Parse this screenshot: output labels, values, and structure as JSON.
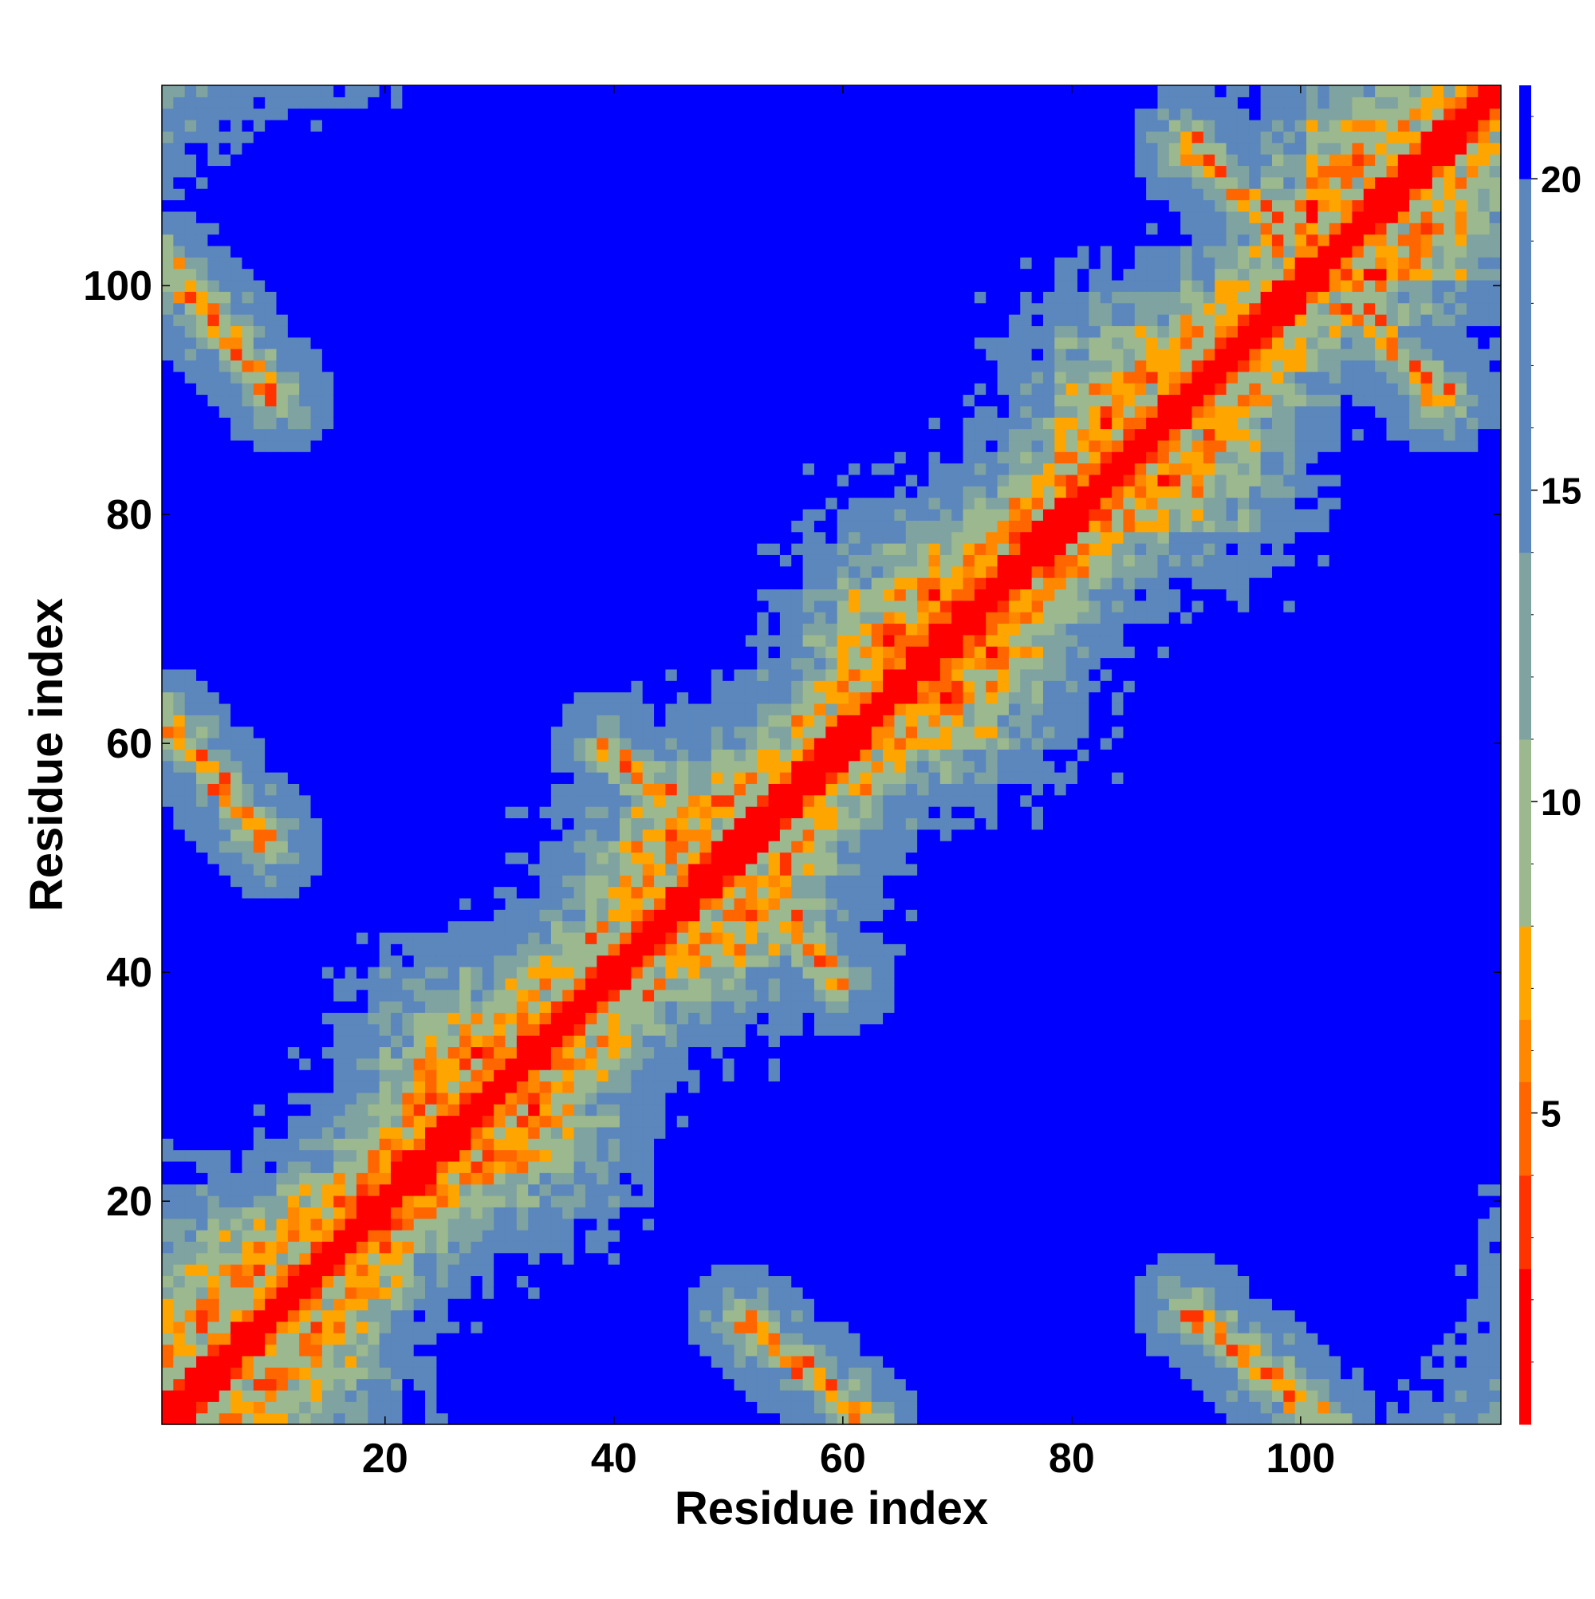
{
  "chart_data": {
    "type": "heatmap",
    "title": "",
    "xlabel": "Residue index",
    "ylabel": "Residue index",
    "n_residues": 117,
    "xlim": [
      1,
      117
    ],
    "ylim": [
      1,
      117
    ],
    "x_ticks": [
      20,
      40,
      60,
      80,
      100
    ],
    "y_ticks": [
      20,
      40,
      60,
      80,
      100
    ],
    "x_tick_labels": [
      "20",
      "40",
      "60",
      "80",
      "100"
    ],
    "y_tick_labels": [
      "20",
      "40",
      "60",
      "80",
      "100"
    ],
    "colorbar": {
      "range": [
        0,
        21.5
      ],
      "ticks": [
        5,
        10,
        15,
        20
      ],
      "tick_labels": [
        "5",
        "10",
        "15",
        "20"
      ],
      "levels": [
        {
          "max": 2.5,
          "color": "#ff0000"
        },
        {
          "max": 4.0,
          "color": "#ff3300"
        },
        {
          "max": 5.5,
          "color": "#ff6600"
        },
        {
          "max": 6.5,
          "color": "#ff8800"
        },
        {
          "max": 8.0,
          "color": "#ffa500"
        },
        {
          "max": 11.0,
          "color": "#9cb88f"
        },
        {
          "max": 14.0,
          "color": "#7fa3a0"
        },
        {
          "max": 20.0,
          "color": "#5b87bd"
        },
        {
          "max": 21.5,
          "color": "#0000ff"
        }
      ]
    },
    "grid": false,
    "legend": "colorbar-right",
    "contact_features": {
      "helix_diagonal_segments": [
        [
          14,
          36
        ],
        [
          60,
          88
        ]
      ],
      "antiparallel_bands": [
        {
          "from": [
            1,
            102
          ],
          "to": [
            11,
            90
          ]
        },
        {
          "from": [
            1,
            62
          ],
          "to": [
            10,
            51
          ]
        },
        {
          "from": [
            40,
            59
          ],
          "to": [
            50,
            51
          ]
        },
        {
          "from": [
            51,
            49
          ],
          "to": [
            60,
            39
          ]
        },
        {
          "from": [
            51,
            10
          ],
          "to": [
            62,
            1
          ]
        },
        {
          "from": [
            91,
            10
          ],
          "to": [
            101,
            1
          ]
        },
        {
          "from": [
            90,
            113
          ],
          "to": [
            98,
            104
          ]
        },
        {
          "from": [
            103,
            101
          ],
          "to": [
            112,
            90
          ]
        }
      ]
    }
  }
}
